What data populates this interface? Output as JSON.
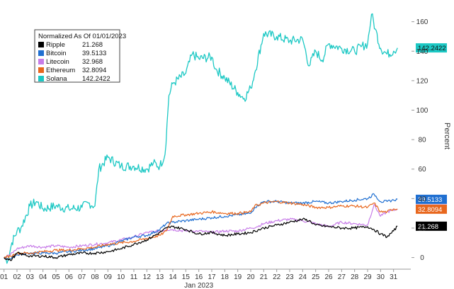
{
  "chart_data": {
    "type": "line",
    "title": "",
    "xlabel": "Jan 2023",
    "ylabel": "Percent",
    "x_ticks": [
      "01",
      "02",
      "03",
      "04",
      "05",
      "06",
      "07",
      "08",
      "09",
      "10",
      "11",
      "12",
      "13",
      "14",
      "15",
      "16",
      "17",
      "18",
      "19",
      "20",
      "21",
      "22",
      "23",
      "24",
      "25",
      "26",
      "27",
      "28",
      "29",
      "30",
      "31"
    ],
    "y_ticks": [
      0,
      20,
      40,
      60,
      80,
      100,
      120,
      140,
      160
    ],
    "ylim": [
      -5,
      168
    ],
    "xlim": [
      0.8,
      32.0
    ],
    "grid": false,
    "legend_title": "Normalized As Of 01/01/2023",
    "legend_position": "top-left",
    "series": [
      {
        "name": "Ripple",
        "last": "21.268",
        "color": "#000000",
        "tag_text_color": "#ffffff",
        "x": [
          1.0,
          1.5,
          2.0,
          2.5,
          3.0,
          4.0,
          5.0,
          6.0,
          7.0,
          8.0,
          9.0,
          10.0,
          11.0,
          12.0,
          13.0,
          13.5,
          14.0,
          15.0,
          16.0,
          17.0,
          18.0,
          19.0,
          20.0,
          21.0,
          22.0,
          23.0,
          24.0,
          24.5,
          25.0,
          26.0,
          27.0,
          28.0,
          29.0,
          29.5,
          30.0,
          30.5,
          31.0,
          31.3
        ],
        "values": [
          0,
          -2,
          3,
          2,
          1,
          1,
          0,
          2,
          3,
          3,
          4,
          6,
          9,
          12,
          17,
          20,
          21,
          19,
          16,
          17,
          15,
          16,
          17,
          20,
          22,
          24,
          26,
          25,
          22,
          21,
          20,
          20,
          21,
          19,
          16,
          14,
          18,
          21.27
        ]
      },
      {
        "name": "Bitcoin",
        "last": "39.5133",
        "color": "#1f6fd1",
        "tag_text_color": "#ffffff",
        "x": [
          1.0,
          1.5,
          2.0,
          3.0,
          4.0,
          5.0,
          6.0,
          7.0,
          8.0,
          9.0,
          10.0,
          11.0,
          12.0,
          13.0,
          13.5,
          14.0,
          15.0,
          16.0,
          17.0,
          18.0,
          19.0,
          20.0,
          20.3,
          21.0,
          22.0,
          23.0,
          24.0,
          25.0,
          26.0,
          27.0,
          28.0,
          29.0,
          29.5,
          30.0,
          30.5,
          31.0,
          31.3
        ],
        "values": [
          0,
          -1,
          2,
          3,
          3,
          3,
          4,
          5,
          6,
          8,
          11,
          14,
          15,
          19,
          23,
          24,
          25,
          26,
          27,
          28,
          29,
          30,
          34,
          38,
          38,
          37,
          37,
          38,
          37,
          38,
          39,
          40,
          43,
          38,
          38,
          39,
          39.51
        ]
      },
      {
        "name": "Litecoin",
        "last": "32.968",
        "color": "#c77ce8",
        "tag_text_color": "#111111",
        "x": [
          1.0,
          1.5,
          2.0,
          3.0,
          4.0,
          5.0,
          6.0,
          7.0,
          8.0,
          9.0,
          10.0,
          11.0,
          12.0,
          13.0,
          13.5,
          14.0,
          15.0,
          16.0,
          17.0,
          18.0,
          19.0,
          20.0,
          20.5,
          21.0,
          22.0,
          23.0,
          24.0,
          25.0,
          26.0,
          27.0,
          28.0,
          29.0,
          29.5,
          30.0,
          30.5,
          31.0,
          31.3
        ],
        "values": [
          0,
          2,
          6,
          8,
          7,
          8,
          7,
          8,
          9,
          10,
          12,
          14,
          17,
          18,
          19,
          19,
          18,
          18,
          17,
          18,
          18,
          20,
          21,
          23,
          25,
          26,
          25,
          23,
          21,
          24,
          23,
          22,
          36,
          28,
          31,
          32,
          32.97
        ]
      },
      {
        "name": "Ethereum",
        "last": "32.8094",
        "color": "#e8671e",
        "tag_text_color": "#ffffff",
        "x": [
          1.0,
          1.5,
          2.0,
          3.0,
          4.0,
          5.0,
          6.0,
          7.0,
          8.0,
          9.0,
          10.0,
          11.0,
          12.0,
          13.0,
          13.5,
          14.0,
          15.0,
          16.0,
          17.0,
          18.0,
          19.0,
          20.0,
          20.3,
          21.0,
          22.0,
          23.0,
          24.0,
          25.0,
          26.0,
          27.0,
          28.0,
          29.0,
          29.5,
          30.0,
          30.5,
          31.0,
          31.3
        ],
        "values": [
          0,
          1,
          3,
          3,
          4,
          5,
          5,
          6,
          7,
          9,
          10,
          11,
          13,
          15,
          18,
          28,
          29,
          30,
          31,
          30,
          30,
          31,
          35,
          37,
          38,
          37,
          36,
          34,
          34,
          35,
          35,
          34,
          37,
          31,
          31,
          33,
          32.81
        ]
      },
      {
        "name": "Solana",
        "last": "142.2422",
        "color": "#1cc8c4",
        "tag_text_color": "#111111",
        "x": [
          1.0,
          1.3,
          1.6,
          2.0,
          2.3,
          3.0,
          3.5,
          4.0,
          5.0,
          6.0,
          7.0,
          7.5,
          8.0,
          8.3,
          9.0,
          10.0,
          11.0,
          12.0,
          12.5,
          13.0,
          13.4,
          13.7,
          14.0,
          15.0,
          15.5,
          16.0,
          17.0,
          17.3,
          18.0,
          19.0,
          19.5,
          20.0,
          20.3,
          21.0,
          22.0,
          23.0,
          24.0,
          24.5,
          25.0,
          25.5,
          26.0,
          27.0,
          28.0,
          28.5,
          29.0,
          29.3,
          29.6,
          30.0,
          30.5,
          31.0,
          31.3
        ],
        "values": [
          0,
          -2,
          10,
          18,
          20,
          35,
          38,
          33,
          35,
          33,
          34,
          37,
          35,
          60,
          68,
          62,
          62,
          60,
          64,
          62,
          70,
          110,
          118,
          125,
          138,
          135,
          136,
          128,
          122,
          112,
          108,
          115,
          125,
          152,
          150,
          147,
          148,
          130,
          140,
          134,
          145,
          142,
          140,
          143,
          145,
          165,
          155,
          142,
          138,
          140,
          142.24
        ]
      }
    ]
  }
}
